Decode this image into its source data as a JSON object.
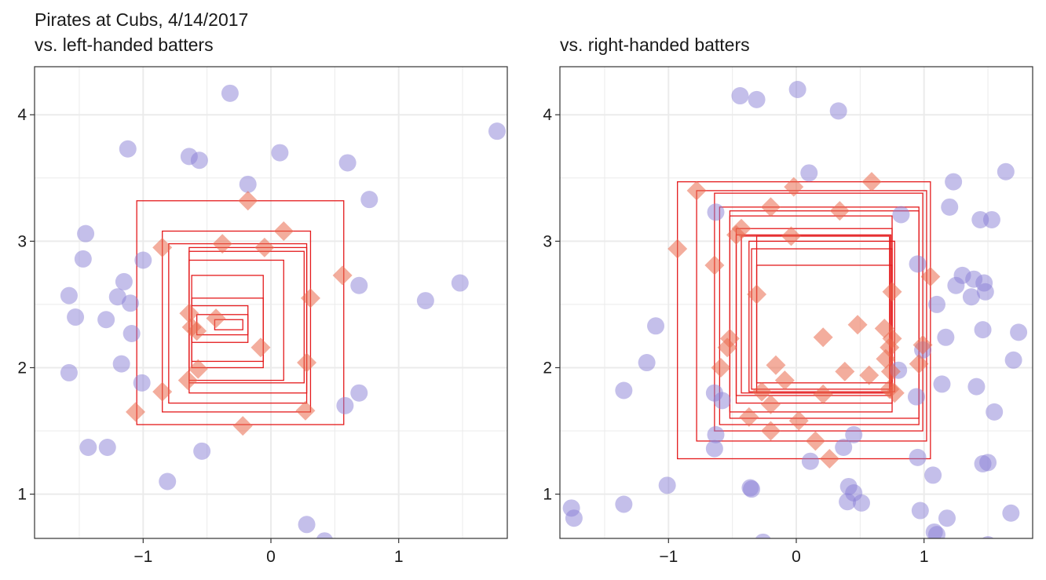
{
  "figure": {
    "title": "Pirates at Cubs, 4/14/2017"
  },
  "colors": {
    "ball": "#8a7fd6",
    "strike": "#ea6a4c",
    "zone": "#e41a1c",
    "grid": "#ebebeb",
    "panel_border": "#333333"
  },
  "chart_data": [
    {
      "type": "scatter",
      "title": "vs. left-handed batters",
      "xlim": [
        -1.85,
        1.85
      ],
      "ylim": [
        0.65,
        4.38
      ],
      "x_ticks": [
        -1,
        0,
        1
      ],
      "y_ticks": [
        1,
        2,
        3,
        4
      ],
      "x_tick_labels": [
        "−1",
        "0",
        "1"
      ],
      "y_tick_labels": [
        "1",
        "2",
        "3",
        "4"
      ],
      "grid": true,
      "series": [
        {
          "marker": "circle",
          "points": [
            [
              -0.32,
              4.17
            ],
            [
              1.77,
              3.87
            ],
            [
              -1.12,
              3.73
            ],
            [
              -0.64,
              3.67
            ],
            [
              -0.56,
              3.64
            ],
            [
              0.07,
              3.7
            ],
            [
              0.6,
              3.62
            ],
            [
              -0.18,
              3.45
            ],
            [
              0.77,
              3.33
            ],
            [
              -1.45,
              3.06
            ],
            [
              -1.47,
              2.86
            ],
            [
              -1.0,
              2.85
            ],
            [
              -1.15,
              2.68
            ],
            [
              -1.58,
              2.57
            ],
            [
              -1.2,
              2.56
            ],
            [
              -1.1,
              2.51
            ],
            [
              0.69,
              2.65
            ],
            [
              1.21,
              2.53
            ],
            [
              1.48,
              2.67
            ],
            [
              -1.53,
              2.4
            ],
            [
              -1.29,
              2.38
            ],
            [
              -1.09,
              2.27
            ],
            [
              -1.17,
              2.03
            ],
            [
              -1.58,
              1.96
            ],
            [
              -1.01,
              1.88
            ],
            [
              0.69,
              1.8
            ],
            [
              0.58,
              1.7
            ],
            [
              -1.43,
              1.37
            ],
            [
              -1.28,
              1.37
            ],
            [
              -0.54,
              1.34
            ],
            [
              -0.81,
              1.1
            ],
            [
              0.28,
              0.76
            ],
            [
              0.42,
              0.63
            ]
          ]
        },
        {
          "marker": "diamond",
          "points": [
            [
              -0.18,
              3.32
            ],
            [
              0.1,
              3.08
            ],
            [
              -0.85,
              2.95
            ],
            [
              -0.38,
              2.98
            ],
            [
              -0.05,
              2.95
            ],
            [
              0.56,
              2.73
            ],
            [
              0.31,
              2.55
            ],
            [
              -0.64,
              2.43
            ],
            [
              -0.62,
              2.32
            ],
            [
              -0.58,
              2.29
            ],
            [
              -0.43,
              2.39
            ],
            [
              -0.08,
              2.16
            ],
            [
              -0.57,
              1.99
            ],
            [
              -0.65,
              1.9
            ],
            [
              0.28,
              2.04
            ],
            [
              -0.85,
              1.81
            ],
            [
              -1.06,
              1.65
            ],
            [
              0.27,
              1.66
            ],
            [
              -0.22,
              1.54
            ]
          ]
        }
      ],
      "zones": [
        [
          -1.05,
          0.57,
          1.55,
          3.32
        ],
        [
          -0.85,
          0.31,
          1.65,
          3.08
        ],
        [
          -0.8,
          0.28,
          1.72,
          2.98
        ],
        [
          -0.64,
          0.28,
          1.8,
          2.95
        ],
        [
          -0.64,
          0.26,
          1.88,
          2.92
        ],
        [
          -0.64,
          0.1,
          1.9,
          2.85
        ],
        [
          -0.62,
          -0.06,
          2.0,
          2.73
        ],
        [
          -0.62,
          -0.06,
          2.05,
          2.55
        ],
        [
          -0.62,
          -0.18,
          2.2,
          2.49
        ],
        [
          -0.58,
          -0.18,
          2.26,
          2.42
        ],
        [
          -0.44,
          -0.22,
          2.3,
          2.38
        ]
      ]
    },
    {
      "type": "scatter",
      "title": "vs. right-handed batters",
      "xlim": [
        -1.85,
        1.85
      ],
      "ylim": [
        0.65,
        4.38
      ],
      "x_ticks": [
        -1,
        0,
        1
      ],
      "y_ticks": [
        1,
        2,
        3,
        4
      ],
      "x_tick_labels": [
        "−1",
        "0",
        "1"
      ],
      "y_tick_labels": [
        "1",
        "2",
        "3",
        "4"
      ],
      "grid": true,
      "series": [
        {
          "marker": "circle",
          "points": [
            [
              -0.44,
              4.15
            ],
            [
              -0.31,
              4.12
            ],
            [
              0.01,
              4.2
            ],
            [
              0.33,
              4.03
            ],
            [
              0.1,
              3.54
            ],
            [
              1.64,
              3.55
            ],
            [
              1.23,
              3.47
            ],
            [
              -0.63,
              3.23
            ],
            [
              0.82,
              3.21
            ],
            [
              1.2,
              3.27
            ],
            [
              1.44,
              3.17
            ],
            [
              1.53,
              3.17
            ],
            [
              0.95,
              2.82
            ],
            [
              1.3,
              2.73
            ],
            [
              1.25,
              2.65
            ],
            [
              1.37,
              2.56
            ],
            [
              1.47,
              2.67
            ],
            [
              1.48,
              2.6
            ],
            [
              1.39,
              2.7
            ],
            [
              1.1,
              2.5
            ],
            [
              -1.1,
              2.33
            ],
            [
              1.17,
              2.24
            ],
            [
              1.46,
              2.3
            ],
            [
              1.74,
              2.28
            ],
            [
              -1.17,
              2.04
            ],
            [
              0.99,
              2.14
            ],
            [
              1.7,
              2.06
            ],
            [
              0.8,
              1.98
            ],
            [
              -1.35,
              1.82
            ],
            [
              -0.64,
              1.8
            ],
            [
              -0.58,
              1.74
            ],
            [
              0.94,
              1.77
            ],
            [
              1.14,
              1.87
            ],
            [
              1.41,
              1.85
            ],
            [
              1.55,
              1.65
            ],
            [
              -0.63,
              1.47
            ],
            [
              -0.64,
              1.36
            ],
            [
              0.45,
              1.47
            ],
            [
              0.37,
              1.37
            ],
            [
              0.11,
              1.26
            ],
            [
              0.95,
              1.29
            ],
            [
              1.46,
              1.24
            ],
            [
              1.5,
              1.25
            ],
            [
              1.07,
              1.15
            ],
            [
              -1.01,
              1.07
            ],
            [
              -0.36,
              1.05
            ],
            [
              -0.35,
              1.04
            ],
            [
              0.41,
              1.06
            ],
            [
              0.45,
              1.01
            ],
            [
              0.4,
              0.94
            ],
            [
              0.51,
              0.93
            ],
            [
              -1.76,
              0.89
            ],
            [
              -1.74,
              0.81
            ],
            [
              -1.35,
              0.92
            ],
            [
              0.97,
              0.87
            ],
            [
              1.68,
              0.85
            ],
            [
              1.18,
              0.81
            ],
            [
              1.08,
              0.7
            ],
            [
              1.1,
              0.68
            ],
            [
              -0.26,
              0.62
            ],
            [
              1.5,
              0.6
            ]
          ]
        },
        {
          "marker": "diamond",
          "points": [
            [
              -0.78,
              3.4
            ],
            [
              -0.02,
              3.43
            ],
            [
              0.59,
              3.47
            ],
            [
              -0.2,
              3.27
            ],
            [
              0.34,
              3.24
            ],
            [
              -0.43,
              3.1
            ],
            [
              -0.47,
              3.05
            ],
            [
              -0.04,
              3.04
            ],
            [
              -0.93,
              2.94
            ],
            [
              -0.64,
              2.81
            ],
            [
              1.05,
              2.72
            ],
            [
              -0.31,
              2.58
            ],
            [
              0.75,
              2.6
            ],
            [
              0.48,
              2.34
            ],
            [
              0.21,
              2.24
            ],
            [
              0.69,
              2.31
            ],
            [
              0.75,
              2.23
            ],
            [
              0.73,
              2.16
            ],
            [
              -0.52,
              2.23
            ],
            [
              -0.54,
              2.16
            ],
            [
              0.99,
              2.18
            ],
            [
              0.96,
              2.03
            ],
            [
              0.7,
              2.07
            ],
            [
              -0.16,
              2.02
            ],
            [
              -0.59,
              2.0
            ],
            [
              0.38,
              1.97
            ],
            [
              0.57,
              1.94
            ],
            [
              0.74,
              1.97
            ],
            [
              0.73,
              1.83
            ],
            [
              0.77,
              1.8
            ],
            [
              -0.27,
              1.81
            ],
            [
              -0.2,
              1.71
            ],
            [
              -0.09,
              1.9
            ],
            [
              0.21,
              1.79
            ],
            [
              -0.37,
              1.61
            ],
            [
              0.02,
              1.58
            ],
            [
              -0.2,
              1.5
            ],
            [
              0.15,
              1.42
            ],
            [
              0.26,
              1.28
            ]
          ]
        }
      ],
      "zones": [
        [
          -0.93,
          1.05,
          1.28,
          3.47
        ],
        [
          -0.78,
          1.02,
          1.42,
          3.4
        ],
        [
          -0.64,
          0.99,
          1.5,
          3.38
        ],
        [
          -0.6,
          0.96,
          1.55,
          3.27
        ],
        [
          -0.52,
          0.96,
          1.6,
          3.24
        ],
        [
          -0.52,
          0.75,
          1.65,
          3.2
        ],
        [
          -0.47,
          0.75,
          1.72,
          3.1
        ],
        [
          -0.47,
          0.74,
          1.78,
          3.05
        ],
        [
          -0.43,
          0.73,
          1.8,
          3.04
        ],
        [
          -0.31,
          0.73,
          1.8,
          3.04
        ],
        [
          -0.37,
          0.77,
          1.81,
          3.0
        ],
        [
          -0.35,
          0.75,
          1.83,
          2.94
        ],
        [
          -0.31,
          0.75,
          1.88,
          2.81
        ]
      ]
    }
  ]
}
